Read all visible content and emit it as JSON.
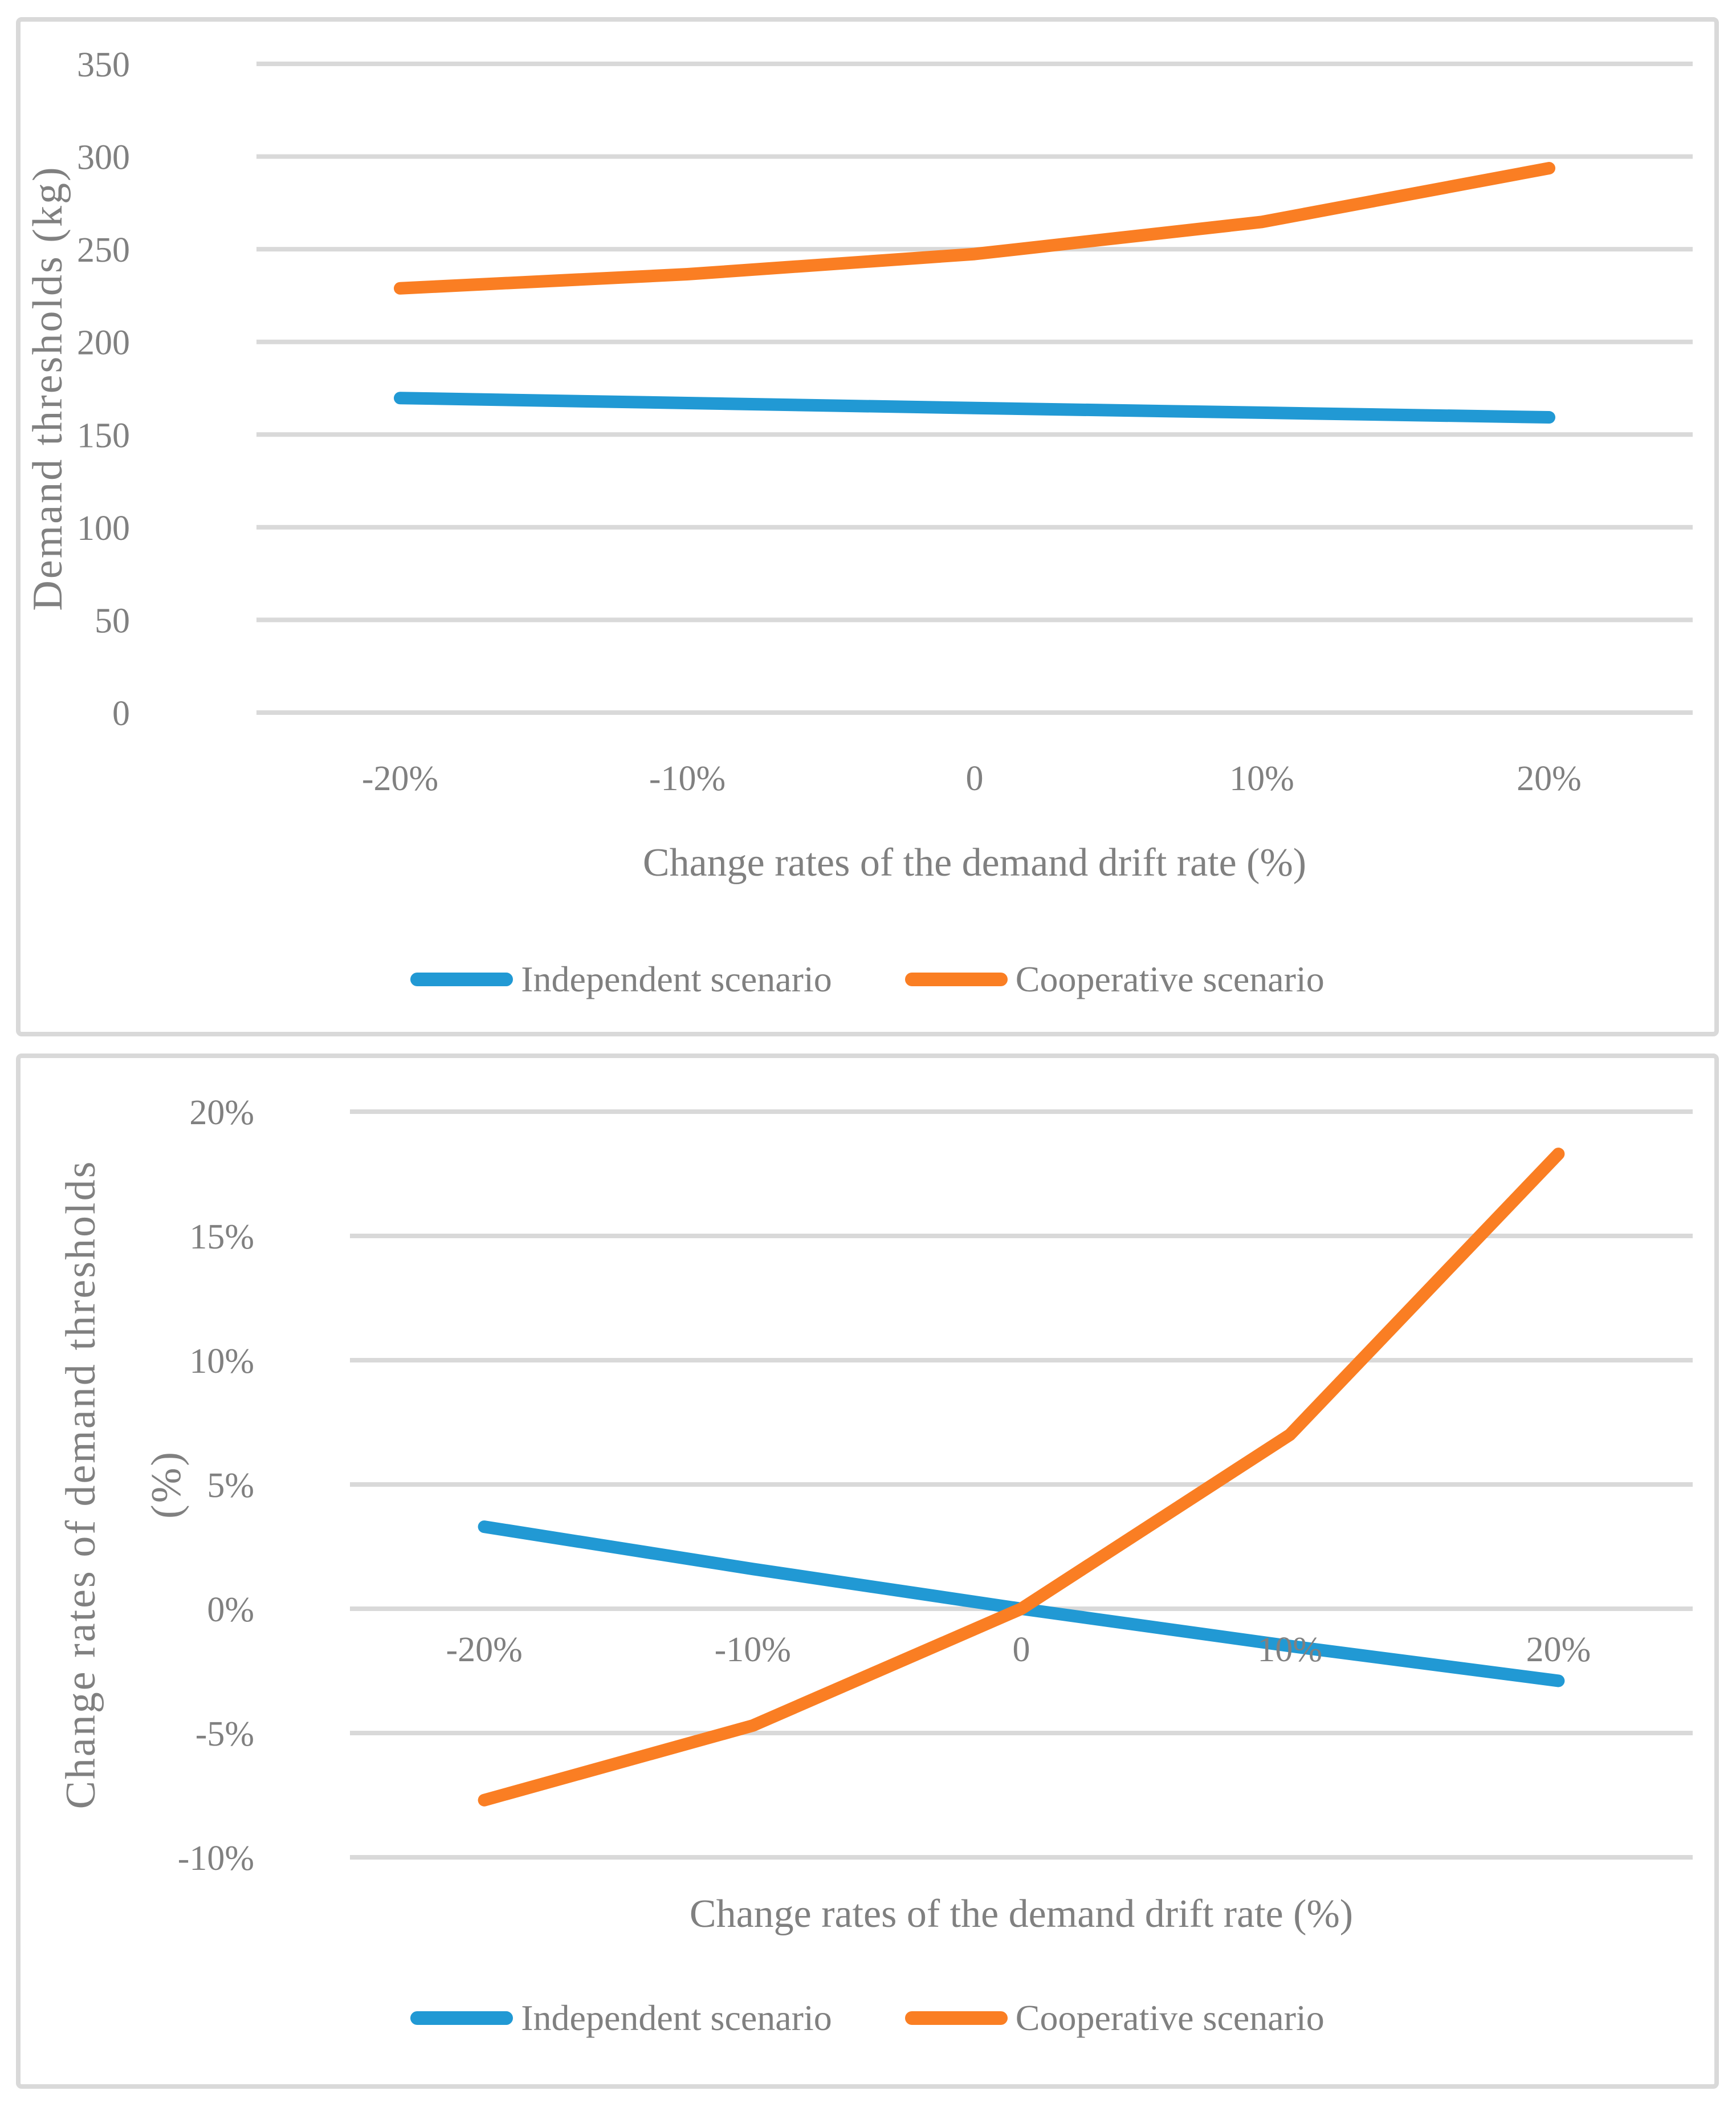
{
  "colors": {
    "text": "#808080",
    "gridline": "#D9D9D9",
    "panel_border": "#D9D9D9",
    "background": "#FFFFFF",
    "independent_blue": "#2199D4",
    "cooperative_orange": "#FA7E23"
  },
  "chart_data": [
    {
      "type": "line",
      "title": "",
      "ylabel": "Demand thresholds (kg)",
      "ylabel_line2": "",
      "xlabel": "Change rates of the demand drift rate (%)",
      "categories": [
        "-20%",
        "-10%",
        "0",
        "10%",
        "20%"
      ],
      "ylim": [
        0,
        350
      ],
      "grid": true,
      "legend_position": "bottom",
      "yticks": [
        {
          "value": 350,
          "label": "350"
        },
        {
          "value": 300,
          "label": "300"
        },
        {
          "value": 250,
          "label": "250"
        },
        {
          "value": 200,
          "label": "200"
        },
        {
          "value": 150,
          "label": "150"
        },
        {
          "value": 100,
          "label": "100"
        },
        {
          "value": 50,
          "label": "50"
        },
        {
          "value": 0,
          "label": "0"
        }
      ],
      "series": [
        {
          "name": "Independent scenario",
          "color": "#2199D4",
          "values": [
            169.7,
            167.0,
            164.3,
            161.8,
            159.3
          ]
        },
        {
          "name": "Cooperative scenario",
          "color": "#FA7E23",
          "values": [
            228.9,
            236.5,
            247.4,
            264.7,
            293.7
          ]
        }
      ]
    },
    {
      "type": "line",
      "title": "",
      "ylabel": "Change rates of demand thresholds",
      "ylabel_line2": "(%)",
      "xlabel": "Change rates of the demand drift rate (%)",
      "categories": [
        "-20%",
        "-10%",
        "0",
        "10%",
        "20%"
      ],
      "ylim": [
        -10,
        20
      ],
      "grid": true,
      "legend_position": "bottom",
      "yticks": [
        {
          "value": 20,
          "label": "20%"
        },
        {
          "value": 15,
          "label": "15%"
        },
        {
          "value": 10,
          "label": "10%"
        },
        {
          "value": 5,
          "label": "5%"
        },
        {
          "value": 0,
          "label": "0%"
        },
        {
          "value": -5,
          "label": "-5%"
        },
        {
          "value": -10,
          "label": "-10%"
        }
      ],
      "series": [
        {
          "name": "Independent scenario",
          "color": "#2199D4",
          "values": [
            3.3,
            1.6,
            0.0,
            -1.5,
            -2.9
          ]
        },
        {
          "name": "Cooperative scenario",
          "color": "#FA7E23",
          "values": [
            -7.7,
            -4.7,
            0.0,
            7.0,
            18.3
          ]
        }
      ]
    }
  ]
}
